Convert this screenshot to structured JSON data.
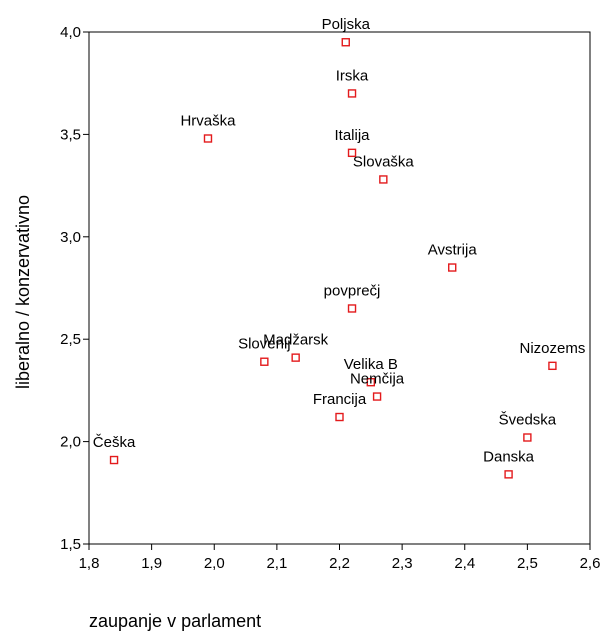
{
  "chart_data": {
    "type": "scatter",
    "title": "",
    "xlabel": "zaupanje v parlament",
    "ylabel": "liberalno / konzervativno",
    "xlim": [
      1.8,
      2.6
    ],
    "ylim": [
      1.5,
      4.0
    ],
    "xticks": [
      "1,8",
      "1,9",
      "2,0",
      "2,1",
      "2,2",
      "2,3",
      "2,4",
      "2,5",
      "2,6"
    ],
    "yticks": [
      "1,5",
      "2,0",
      "2,5",
      "3,0",
      "3,5",
      "4,0"
    ],
    "grid": false,
    "marker_color": "#e31a1c",
    "points": [
      {
        "label": "Poljska",
        "x": 2.21,
        "y": 3.95
      },
      {
        "label": "Irska",
        "x": 2.22,
        "y": 3.7
      },
      {
        "label": "Hrvaška",
        "x": 1.99,
        "y": 3.48
      },
      {
        "label": "Italija",
        "x": 2.22,
        "y": 3.41
      },
      {
        "label": "Slovaška",
        "x": 2.27,
        "y": 3.28
      },
      {
        "label": "Avstrija",
        "x": 2.38,
        "y": 2.85
      },
      {
        "label": "povprečj",
        "x": 2.22,
        "y": 2.65
      },
      {
        "label": "Madžarsk",
        "x": 2.13,
        "y": 2.41
      },
      {
        "label": "Slovenij",
        "x": 2.08,
        "y": 2.39
      },
      {
        "label": "Nizozems",
        "x": 2.54,
        "y": 2.37
      },
      {
        "label": "Velika B",
        "x": 2.25,
        "y": 2.29
      },
      {
        "label": "Nemčija",
        "x": 2.26,
        "y": 2.22
      },
      {
        "label": "Francija",
        "x": 2.2,
        "y": 2.12
      },
      {
        "label": "Švedska",
        "x": 2.5,
        "y": 2.02
      },
      {
        "label": "Češka",
        "x": 1.84,
        "y": 1.91
      },
      {
        "label": "Danska",
        "x": 2.47,
        "y": 1.84
      }
    ]
  }
}
